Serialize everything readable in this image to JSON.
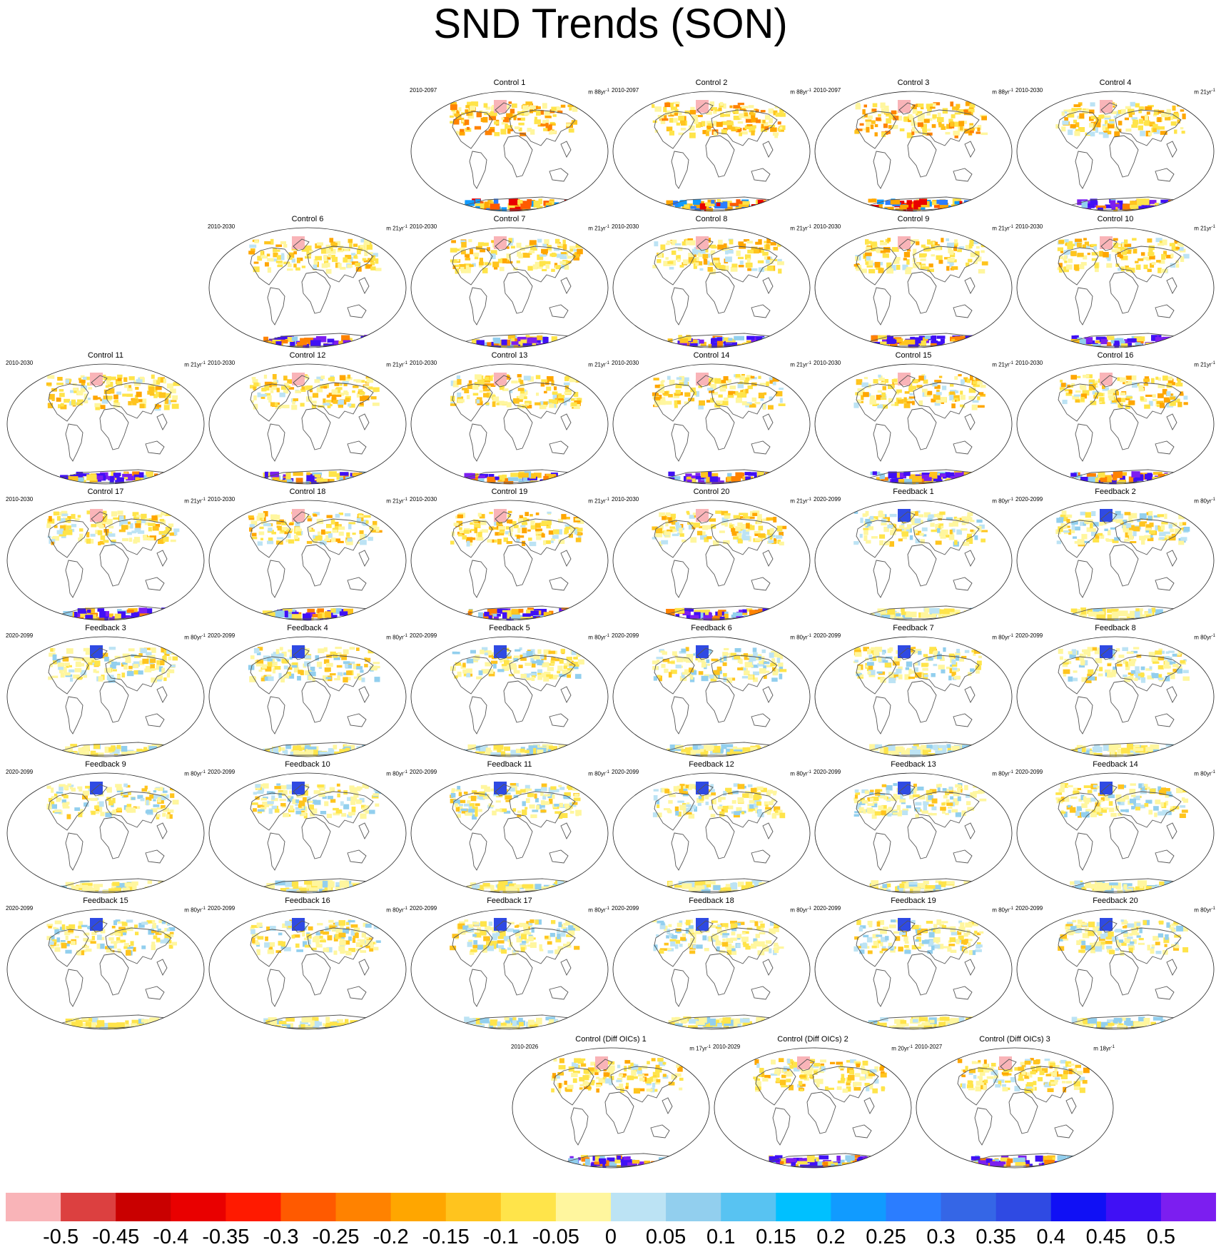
{
  "title": "SND Trends (SON)",
  "units_prefix": "m ",
  "units_suffix": "yr",
  "units_exponent": "-1",
  "panels": [
    {
      "title": "Control 1",
      "period": "2010-2097",
      "years": "88",
      "style": "control_long"
    },
    {
      "title": "Control 2",
      "period": "2010-2097",
      "years": "88",
      "style": "control_long"
    },
    {
      "title": "Control 3",
      "period": "2010-2097",
      "years": "88",
      "style": "control_long"
    },
    {
      "title": "Control 4",
      "period": "2010-2030",
      "years": "21",
      "style": "control"
    },
    {
      "title": "Control 6",
      "period": "2010-2030",
      "years": "21",
      "style": "control"
    },
    {
      "title": "Control 7",
      "period": "2010-2030",
      "years": "21",
      "style": "control"
    },
    {
      "title": "Control 8",
      "period": "2010-2030",
      "years": "21",
      "style": "control"
    },
    {
      "title": "Control 9",
      "period": "2010-2030",
      "years": "21",
      "style": "control"
    },
    {
      "title": "Control 10",
      "period": "2010-2030",
      "years": "21",
      "style": "control"
    },
    {
      "title": "Control 11",
      "period": "2010-2030",
      "years": "21",
      "style": "control"
    },
    {
      "title": "Control 12",
      "period": "2010-2030",
      "years": "21",
      "style": "control"
    },
    {
      "title": "Control 13",
      "period": "2010-2030",
      "years": "21",
      "style": "control"
    },
    {
      "title": "Control 14",
      "period": "2010-2030",
      "years": "21",
      "style": "control"
    },
    {
      "title": "Control 15",
      "period": "2010-2030",
      "years": "21",
      "style": "control"
    },
    {
      "title": "Control 16",
      "period": "2010-2030",
      "years": "21",
      "style": "control"
    },
    {
      "title": "Control 17",
      "period": "2010-2030",
      "years": "21",
      "style": "control"
    },
    {
      "title": "Control 18",
      "period": "2010-2030",
      "years": "21",
      "style": "control"
    },
    {
      "title": "Control 19",
      "period": "2010-2030",
      "years": "21",
      "style": "control"
    },
    {
      "title": "Control 20",
      "period": "2010-2030",
      "years": "21",
      "style": "control"
    },
    {
      "title": "Feedback 1",
      "period": "2020-2099",
      "years": "80",
      "style": "feedback"
    },
    {
      "title": "Feedback 2",
      "period": "2020-2099",
      "years": "80",
      "style": "feedback"
    },
    {
      "title": "Feedback 3",
      "period": "2020-2099",
      "years": "80",
      "style": "feedback"
    },
    {
      "title": "Feedback 4",
      "period": "2020-2099",
      "years": "80",
      "style": "feedback"
    },
    {
      "title": "Feedback 5",
      "period": "2020-2099",
      "years": "80",
      "style": "feedback"
    },
    {
      "title": "Feedback 6",
      "period": "2020-2099",
      "years": "80",
      "style": "feedback"
    },
    {
      "title": "Feedback 7",
      "period": "2020-2099",
      "years": "80",
      "style": "feedback"
    },
    {
      "title": "Feedback 8",
      "period": "2020-2099",
      "years": "80",
      "style": "feedback"
    },
    {
      "title": "Feedback 9",
      "period": "2020-2099",
      "years": "80",
      "style": "feedback"
    },
    {
      "title": "Feedback 10",
      "period": "2020-2099",
      "years": "80",
      "style": "feedback"
    },
    {
      "title": "Feedback 11",
      "period": "2020-2099",
      "years": "80",
      "style": "feedback"
    },
    {
      "title": "Feedback 12",
      "period": "2020-2099",
      "years": "80",
      "style": "feedback"
    },
    {
      "title": "Feedback 13",
      "period": "2020-2099",
      "years": "80",
      "style": "feedback"
    },
    {
      "title": "Feedback 14",
      "period": "2020-2099",
      "years": "80",
      "style": "feedback"
    },
    {
      "title": "Feedback 15",
      "period": "2020-2099",
      "years": "80",
      "style": "feedback"
    },
    {
      "title": "Feedback 16",
      "period": "2020-2099",
      "years": "80",
      "style": "feedback"
    },
    {
      "title": "Feedback 17",
      "period": "2020-2099",
      "years": "80",
      "style": "feedback"
    },
    {
      "title": "Feedback 18",
      "period": "2020-2099",
      "years": "80",
      "style": "feedback"
    },
    {
      "title": "Feedback 19",
      "period": "2020-2099",
      "years": "80",
      "style": "feedback"
    },
    {
      "title": "Feedback 20",
      "period": "2020-2099",
      "years": "80",
      "style": "feedback"
    },
    {
      "title": "Control (Diff OICs) 1",
      "period": "2010-2026",
      "years": "17",
      "style": "control"
    },
    {
      "title": "Control (Diff OICs) 2",
      "period": "2010-2029",
      "years": "20",
      "style": "control"
    },
    {
      "title": "Control (Diff OICs) 3",
      "period": "2010-2027",
      "years": "18",
      "style": "control"
    }
  ],
  "colorbar": {
    "colors": [
      "#f9b4b8",
      "#dc4040",
      "#c90000",
      "#e90000",
      "#ff1a00",
      "#ff5a00",
      "#ff8200",
      "#ffa600",
      "#ffc41e",
      "#ffe44a",
      "#fff69e",
      "#bce3f4",
      "#92cfee",
      "#58c3f2",
      "#00c0ff",
      "#119bff",
      "#2b7dff",
      "#3566e6",
      "#2f4ae3",
      "#1010f5",
      "#4010f5",
      "#7c1ef0"
    ],
    "labels": [
      "-0.5",
      "-0.45",
      "-0.4",
      "-0.35",
      "-0.3",
      "-0.25",
      "-0.2",
      "-0.15",
      "-0.1",
      "-0.05",
      "0",
      "0.05",
      "0.1",
      "0.15",
      "0.2",
      "0.25",
      "0.3",
      "0.35",
      "0.4",
      "0.45",
      "0.5"
    ]
  }
}
